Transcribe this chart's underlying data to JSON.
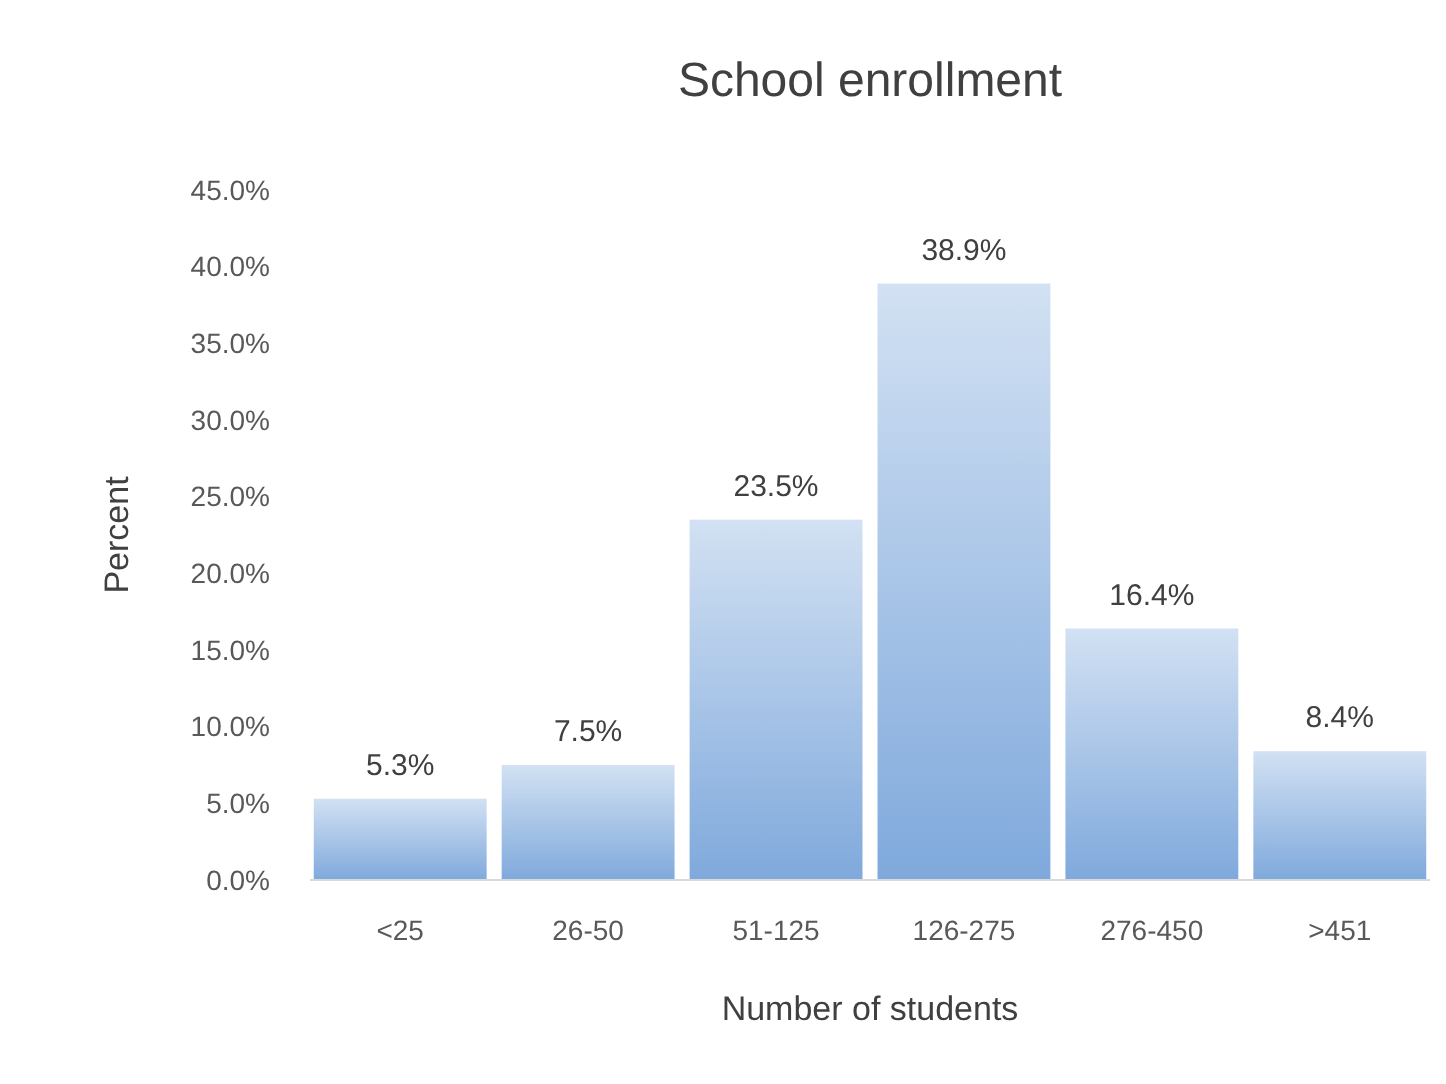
{
  "chart_data": {
    "type": "bar",
    "title": "School enrollment",
    "xlabel": "Number of students",
    "ylabel": "Percent",
    "categories": [
      "<25",
      "26-50",
      "51-125",
      "126-275",
      "276-450",
      ">451"
    ],
    "values": [
      5.3,
      7.5,
      23.5,
      38.9,
      16.4,
      8.4
    ],
    "value_labels": [
      "5.3%",
      "7.5%",
      "23.5%",
      "38.9%",
      "16.4%",
      "8.4%"
    ],
    "color": "#7fa9dc",
    "ylim": [
      0,
      45
    ],
    "yticks": [
      {
        "value": 0,
        "label": "0.0%"
      },
      {
        "value": 5,
        "label": "5.0%"
      },
      {
        "value": 10,
        "label": "10.0%"
      },
      {
        "value": 15,
        "label": "15.0%"
      },
      {
        "value": 20,
        "label": "20.0%"
      },
      {
        "value": 25,
        "label": "25.0%"
      },
      {
        "value": 30,
        "label": "30.0%"
      },
      {
        "value": 35,
        "label": "35.0%"
      },
      {
        "value": 40,
        "label": "40.0%"
      },
      {
        "value": 45,
        "label": "45.0%"
      }
    ],
    "grid": false
  }
}
